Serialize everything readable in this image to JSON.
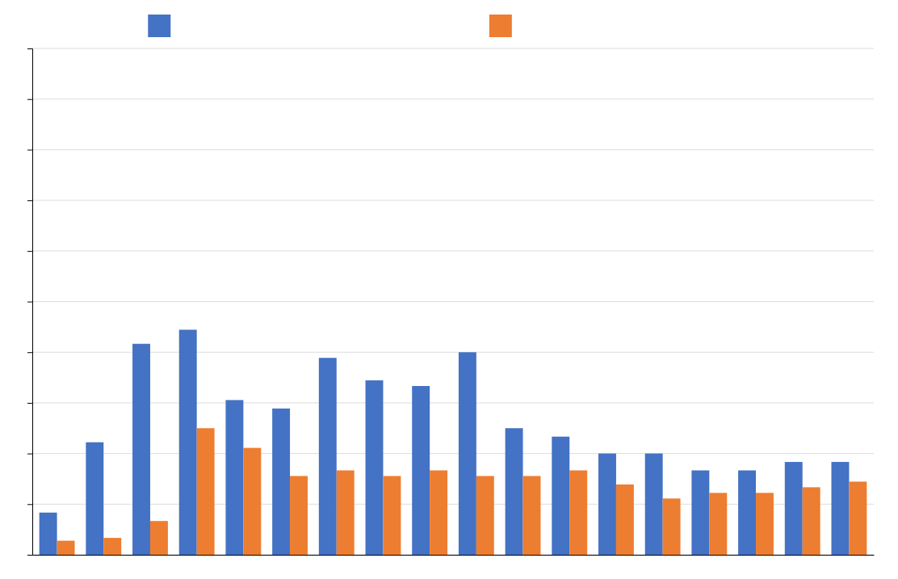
{
  "chart_data": {
    "type": "bar",
    "categories": [
      null,
      null,
      null,
      null,
      null,
      null,
      null,
      null,
      null,
      null,
      null,
      null,
      null,
      null,
      null,
      null,
      null,
      null
    ],
    "series": [
      {
        "color": "#4472c4",
        "values": [
          1.5,
          4.0,
          7.5,
          8.0,
          5.5,
          5.2,
          7.0,
          6.2,
          6.0,
          7.2,
          4.5,
          4.2,
          3.6,
          3.6,
          3.0,
          3.0,
          3.3,
          3.3
        ]
      },
      {
        "color": "#ed7d31",
        "values": [
          0.5,
          0.6,
          1.2,
          4.5,
          3.8,
          2.8,
          3.0,
          2.8,
          3.0,
          2.8,
          2.8,
          3.0,
          2.5,
          2.0,
          2.2,
          2.2,
          2.4,
          2.6
        ]
      }
    ],
    "ylim": [
      0,
      18
    ],
    "yticks": [
      0,
      1.8,
      3.6,
      5.4,
      7.2,
      9.0,
      10.8,
      12.6,
      14.4,
      16.2,
      18
    ],
    "grid": true,
    "legend": "top",
    "tick_labels": false
  }
}
